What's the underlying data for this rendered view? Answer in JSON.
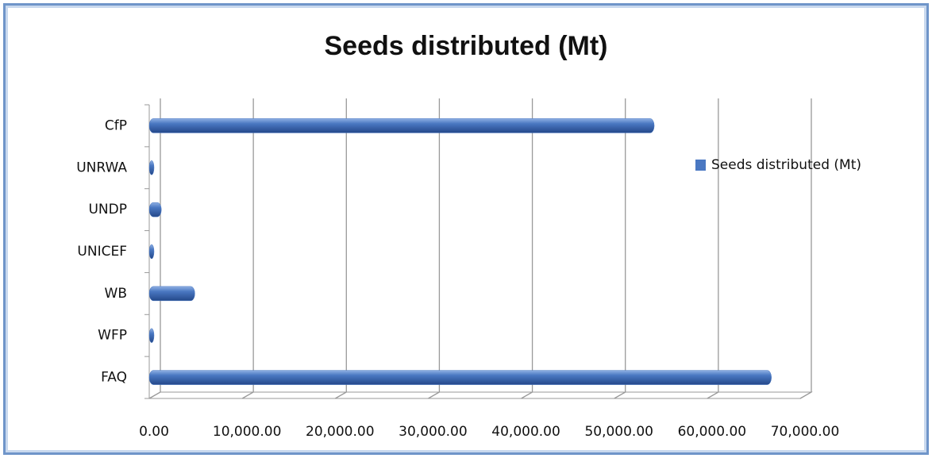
{
  "chart_data": {
    "type": "bar",
    "orientation": "horizontal",
    "title": "Seeds distributed (Mt)",
    "categories": [
      "FAQ",
      "WFP",
      "WB",
      "UNICEF",
      "UNDP",
      "UNRWA",
      "CfP"
    ],
    "series": [
      {
        "name": "Seeds distributed (Mt)",
        "color": "#4a78c2",
        "values": [
          66900,
          300,
          4900,
          300,
          1300,
          300,
          54300
        ]
      }
    ],
    "xlim": [
      0,
      70000
    ],
    "xticks": [
      {
        "value": 0,
        "label": "0.00"
      },
      {
        "value": 10000,
        "label": "10,000.00"
      },
      {
        "value": 20000,
        "label": "20,000.00"
      },
      {
        "value": 30000,
        "label": "30,000.00"
      },
      {
        "value": 40000,
        "label": "40,000.00"
      },
      {
        "value": 50000,
        "label": "50,000.00"
      },
      {
        "value": 60000,
        "label": "60,000.00"
      },
      {
        "value": 70000,
        "label": "70,000.00"
      }
    ],
    "grid": true,
    "legend": "right"
  }
}
